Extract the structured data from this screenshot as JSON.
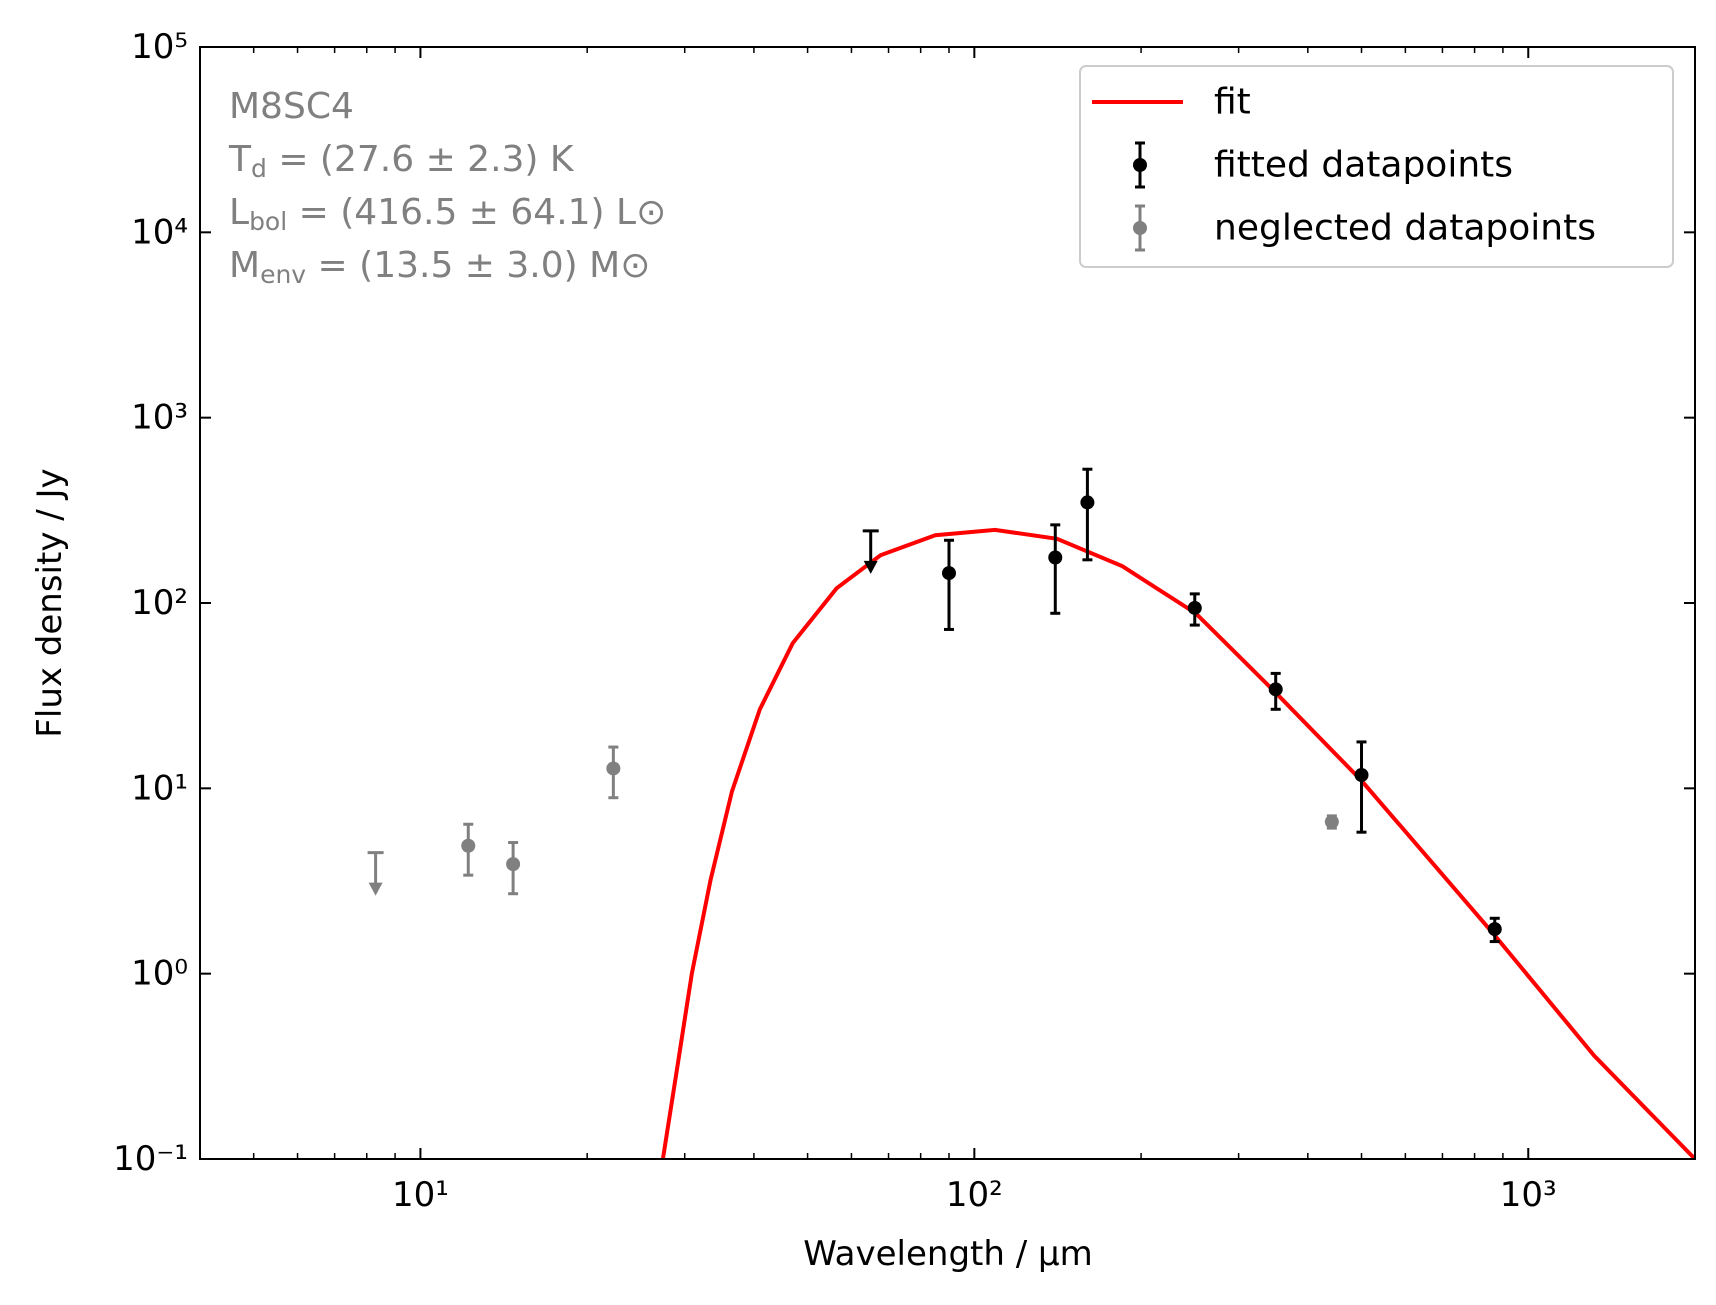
{
  "chart_data": {
    "type": "errorbar",
    "xlabel": "Wavelength / μm",
    "ylabel": "Flux density / Jy",
    "xscale": "log",
    "yscale": "log",
    "xlim": [
      4,
      2000
    ],
    "ylim": [
      0.1,
      100000
    ],
    "xticks": [
      {
        "value": 10,
        "label": "10¹"
      },
      {
        "value": 100,
        "label": "10²"
      },
      {
        "value": 1000,
        "label": "10³"
      }
    ],
    "xminorticks": [
      5,
      6,
      7,
      8,
      9,
      20,
      30,
      40,
      50,
      60,
      70,
      80,
      90,
      200,
      300,
      400,
      500,
      600,
      700,
      800,
      900,
      2000
    ],
    "yticks": [
      {
        "value": 0.1,
        "label": "10⁻¹"
      },
      {
        "value": 1,
        "label": "10⁰"
      },
      {
        "value": 10,
        "label": "10¹"
      },
      {
        "value": 100,
        "label": "10²"
      },
      {
        "value": 1000,
        "label": "10³"
      },
      {
        "value": 10000,
        "label": "10⁴"
      },
      {
        "value": 100000,
        "label": "10⁵"
      }
    ],
    "annotation_color": "#808080",
    "annotations": [
      {
        "text": "M8SC4"
      },
      {
        "text": "T",
        "sub": "d",
        "after": " = (27.6 ± 2.3) K"
      },
      {
        "text": "L",
        "sub": "bol",
        "after": " = (416.5 ± 64.1) L⊙"
      },
      {
        "text": "M",
        "sub": "env",
        "after": " = (13.5 ± 3.0) M⊙"
      }
    ],
    "legend": "upper right",
    "series": [
      {
        "name": "fit",
        "type": "line",
        "color": "#ff0000",
        "x": [
          27.4,
          29.1,
          30.9,
          33.4,
          36.5,
          41,
          47,
          56.4,
          67.7,
          85,
          109,
          141,
          185,
          251,
          350,
          500,
          861,
          1315,
          2000
        ],
        "values": [
          0.1,
          0.315,
          1.0,
          3.2,
          9.6,
          26.7,
          60.7,
          120,
          181,
          232,
          248,
          222,
          158,
          88,
          32.8,
          11.0,
          1.67,
          0.361,
          0.1
        ]
      },
      {
        "name": "fitted datapoints",
        "type": "errorbar",
        "color": "#000000",
        "x": [
          65,
          90,
          140,
          160,
          250,
          350,
          500,
          870
        ],
        "values": [
          245,
          145,
          176,
          349,
          94,
          34.2,
          11.8,
          1.74
        ],
        "yerr": [
          null,
          73,
          88,
          178,
          18,
          7.5,
          6,
          0.25
        ],
        "upper_limit": [
          true,
          false,
          false,
          false,
          false,
          false,
          false,
          false
        ]
      },
      {
        "name": "neglected datapoints",
        "type": "errorbar",
        "color": "#808080",
        "x": [
          8.3,
          12.2,
          14.7,
          22.3,
          442
        ],
        "values": [
          4.5,
          4.9,
          3.9,
          12.8,
          6.6
        ],
        "yerr": [
          null,
          1.5,
          1.2,
          3.9,
          0.5
        ],
        "upper_limit": [
          true,
          false,
          false,
          false,
          false
        ]
      }
    ]
  }
}
